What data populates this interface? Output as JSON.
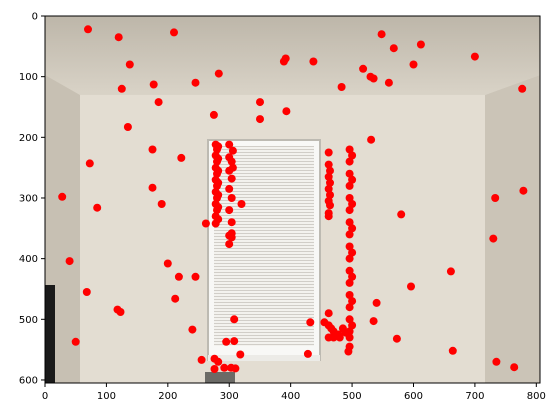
{
  "chart_data": {
    "type": "scatter",
    "title": "",
    "xlabel": "",
    "ylabel": "",
    "background": "photo of a room wall with a window and blinds",
    "xlim": [
      0,
      806
    ],
    "ylim": [
      605,
      0
    ],
    "x_ticks": [
      "0",
      "100",
      "200",
      "300",
      "400",
      "500",
      "600",
      "700",
      "800"
    ],
    "y_ticks": [
      "0",
      "100",
      "200",
      "300",
      "400",
      "500",
      "600"
    ],
    "marker_color": "#ff0000",
    "series": [
      {
        "name": "points",
        "points": [
          [
            70,
            22
          ],
          [
            120,
            35
          ],
          [
            210,
            27
          ],
          [
            138,
            80
          ],
          [
            125,
            120
          ],
          [
            177,
            113
          ],
          [
            185,
            142
          ],
          [
            135,
            183
          ],
          [
            245,
            110
          ],
          [
            283,
            95
          ],
          [
            392,
            70
          ],
          [
            437,
            75
          ],
          [
            389,
            75
          ],
          [
            393,
            157
          ],
          [
            350,
            142
          ],
          [
            350,
            170
          ],
          [
            275,
            163
          ],
          [
            548,
            30
          ],
          [
            568,
            53
          ],
          [
            612,
            47
          ],
          [
            700,
            67
          ],
          [
            518,
            87
          ],
          [
            530,
            100
          ],
          [
            535,
            103
          ],
          [
            560,
            110
          ],
          [
            600,
            80
          ],
          [
            483,
            117
          ],
          [
            531,
            204
          ],
          [
            777,
            120
          ],
          [
            175,
            220
          ],
          [
            222,
            234
          ],
          [
            73,
            243
          ],
          [
            175,
            283
          ],
          [
            28,
            298
          ],
          [
            190,
            310
          ],
          [
            85,
            316
          ],
          [
            320,
            310
          ],
          [
            580,
            327
          ],
          [
            262,
            342
          ],
          [
            733,
            300
          ],
          [
            779,
            288
          ],
          [
            730,
            367
          ],
          [
            40,
            404
          ],
          [
            200,
            408
          ],
          [
            218,
            430
          ],
          [
            245,
            430
          ],
          [
            68,
            455
          ],
          [
            212,
            466
          ],
          [
            540,
            473
          ],
          [
            596,
            446
          ],
          [
            661,
            421
          ],
          [
            118,
            484
          ],
          [
            123,
            488
          ],
          [
            240,
            517
          ],
          [
            308,
            500
          ],
          [
            432,
            505
          ],
          [
            535,
            503
          ],
          [
            50,
            537
          ],
          [
            295,
            537
          ],
          [
            573,
            532
          ],
          [
            664,
            552
          ],
          [
            308,
            536
          ],
          [
            428,
            557
          ],
          [
            255,
            567
          ],
          [
            276,
            565
          ],
          [
            282,
            570
          ],
          [
            318,
            558
          ],
          [
            494,
            553
          ],
          [
            735,
            570
          ],
          [
            764,
            579
          ],
          [
            276,
            582
          ],
          [
            292,
            580
          ],
          [
            303,
            580
          ],
          [
            310,
            581
          ],
          [
            278,
            212
          ],
          [
            278,
            230
          ],
          [
            278,
            250
          ],
          [
            278,
            270
          ],
          [
            278,
            290
          ],
          [
            278,
            310
          ],
          [
            278,
            330
          ],
          [
            278,
            342
          ],
          [
            280,
            220
          ],
          [
            280,
            240
          ],
          [
            280,
            260
          ],
          [
            280,
            280
          ],
          [
            280,
            300
          ],
          [
            280,
            320
          ],
          [
            282,
            215
          ],
          [
            282,
            235
          ],
          [
            282,
            255
          ],
          [
            282,
            275
          ],
          [
            282,
            295
          ],
          [
            282,
            315
          ],
          [
            282,
            335
          ],
          [
            300,
            212
          ],
          [
            300,
            233
          ],
          [
            300,
            255
          ],
          [
            300,
            285
          ],
          [
            300,
            320
          ],
          [
            300,
            362
          ],
          [
            300,
            376
          ],
          [
            304,
            240
          ],
          [
            304,
            268
          ],
          [
            304,
            300
          ],
          [
            304,
            340
          ],
          [
            304,
            358
          ],
          [
            304,
            365
          ],
          [
            306,
            222
          ],
          [
            306,
            250
          ],
          [
            462,
            225
          ],
          [
            462,
            245
          ],
          [
            462,
            265
          ],
          [
            462,
            285
          ],
          [
            462,
            305
          ],
          [
            462,
            325
          ],
          [
            462,
            330
          ],
          [
            464,
            255
          ],
          [
            464,
            275
          ],
          [
            464,
            295
          ],
          [
            464,
            312
          ],
          [
            462,
            490
          ],
          [
            462,
            510
          ],
          [
            462,
            530
          ],
          [
            496,
            220
          ],
          [
            496,
            240
          ],
          [
            496,
            260
          ],
          [
            496,
            280
          ],
          [
            496,
            300
          ],
          [
            496,
            320
          ],
          [
            496,
            340
          ],
          [
            496,
            360
          ],
          [
            496,
            380
          ],
          [
            496,
            400
          ],
          [
            496,
            420
          ],
          [
            496,
            440
          ],
          [
            496,
            460
          ],
          [
            496,
            480
          ],
          [
            496,
            500
          ],
          [
            496,
            520
          ],
          [
            496,
            530
          ],
          [
            496,
            545
          ],
          [
            500,
            230
          ],
          [
            500,
            270
          ],
          [
            500,
            310
          ],
          [
            500,
            350
          ],
          [
            500,
            390
          ],
          [
            500,
            430
          ],
          [
            500,
            470
          ],
          [
            500,
            510
          ],
          [
            466,
            515
          ],
          [
            470,
            520
          ],
          [
            478,
            525
          ],
          [
            485,
            515
          ],
          [
            490,
            522
          ],
          [
            470,
            530
          ],
          [
            480,
            530
          ],
          [
            455,
            505
          ]
        ]
      }
    ]
  }
}
